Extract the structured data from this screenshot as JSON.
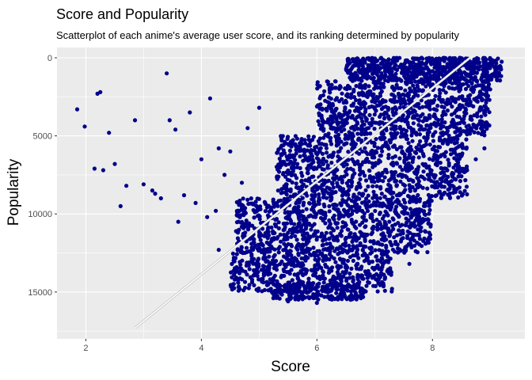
{
  "chart_data": {
    "type": "scatter",
    "title": "Score and Popularity",
    "subtitle": "Scatterplot of each anime's average user score, and its ranking determined by popularity",
    "xlabel": "Score",
    "ylabel": "Popularity",
    "xlim": [
      1.5,
      9.6
    ],
    "ylim": [
      0,
      18000
    ],
    "y_reversed": true,
    "xticks": [
      2,
      4,
      6,
      8
    ],
    "yticks": [
      0,
      5000,
      10000,
      15000
    ],
    "grid": true,
    "point_color": "#00008B",
    "trend_color": "#ffffff",
    "panel_color": "#EBEBEB",
    "trend_line": {
      "x": [
        2.85,
        8.65
      ],
      "y": [
        17300,
        0
      ]
    },
    "clusters": [
      {
        "x_range": [
          6.5,
          9.2
        ],
        "y_range": [
          0,
          1500
        ],
        "count": 700
      },
      {
        "x_range": [
          6.0,
          9.0
        ],
        "y_range": [
          1500,
          5000
        ],
        "count": 800
      },
      {
        "x_range": [
          5.3,
          8.6
        ],
        "y_range": [
          5000,
          9000
        ],
        "count": 900
      },
      {
        "x_range": [
          4.6,
          8.0
        ],
        "y_range": [
          9000,
          12500
        ],
        "count": 900
      },
      {
        "x_range": [
          4.5,
          7.3
        ],
        "y_range": [
          12500,
          15000
        ],
        "count": 500
      },
      {
        "x_range": [
          5.2,
          6.8
        ],
        "y_range": [
          14500,
          15500
        ],
        "count": 200
      }
    ],
    "points": [
      [
        1.85,
        3300
      ],
      [
        1.98,
        4400
      ],
      [
        2.2,
        2300
      ],
      [
        2.25,
        2200
      ],
      [
        2.4,
        4800
      ],
      [
        2.3,
        7200
      ],
      [
        2.5,
        6800
      ],
      [
        2.7,
        8200
      ],
      [
        2.85,
        4000
      ],
      [
        3.0,
        8100
      ],
      [
        3.15,
        8500
      ],
      [
        3.4,
        1000
      ],
      [
        3.45,
        4000
      ],
      [
        3.55,
        4600
      ],
      [
        3.8,
        3500
      ],
      [
        4.0,
        6500
      ],
      [
        4.15,
        2600
      ],
      [
        4.3,
        5800
      ],
      [
        4.5,
        6000
      ],
      [
        3.7,
        8800
      ],
      [
        3.9,
        9300
      ],
      [
        4.1,
        10200
      ],
      [
        2.6,
        9500
      ],
      [
        4.8,
        4500
      ],
      [
        5.0,
        3200
      ],
      [
        3.3,
        9000
      ],
      [
        4.4,
        7500
      ],
      [
        4.7,
        8000
      ],
      [
        3.6,
        10500
      ],
      [
        2.15,
        7100
      ],
      [
        3.2,
        8700
      ],
      [
        4.25,
        9800
      ],
      [
        8.6,
        7200
      ],
      [
        8.75,
        6500
      ],
      [
        8.9,
        5800
      ],
      [
        5.5,
        15600
      ],
      [
        6.0,
        15700
      ],
      [
        7.3,
        14800
      ],
      [
        7.6,
        13200
      ],
      [
        4.3,
        12300
      ]
    ]
  }
}
